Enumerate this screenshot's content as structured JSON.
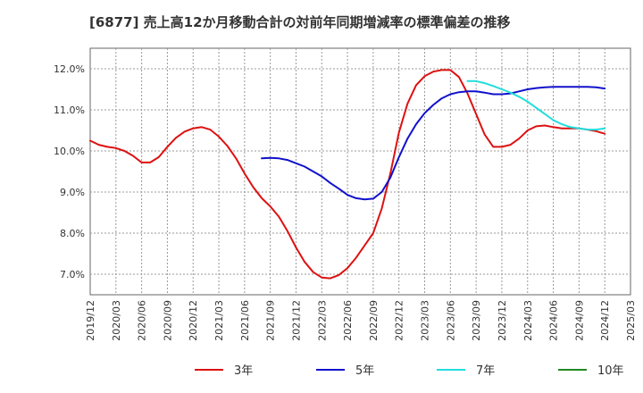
{
  "chart_data": {
    "type": "line",
    "title": "[6877]  売上高12か月移動合計の対前年同期増減率の標準偏差の推移",
    "xlabel": "",
    "ylabel": "",
    "x_ticks": [
      "2019/12",
      "2020/03",
      "2020/06",
      "2020/09",
      "2020/12",
      "2021/03",
      "2021/06",
      "2021/09",
      "2021/12",
      "2022/03",
      "2022/06",
      "2022/09",
      "2022/12",
      "2023/03",
      "2023/06",
      "2023/09",
      "2023/12",
      "2024/03",
      "2024/06",
      "2024/09",
      "2024/12",
      "2025/03"
    ],
    "y_ticks": [
      "7.0%",
      "8.0%",
      "9.0%",
      "10.0%",
      "11.0%",
      "12.0%"
    ],
    "ylim": [
      6.5,
      12.5
    ],
    "grid": true,
    "legend_position": "bottom",
    "series": [
      {
        "name": "3年",
        "color": "#dd1111",
        "points": [
          [
            "2019/12",
            10.25
          ],
          [
            "2020/01",
            10.15
          ],
          [
            "2020/02",
            10.1
          ],
          [
            "2020/03",
            10.07
          ],
          [
            "2020/04",
            10.0
          ],
          [
            "2020/05",
            9.88
          ],
          [
            "2020/06",
            9.72
          ],
          [
            "2020/07",
            9.72
          ],
          [
            "2020/08",
            9.85
          ],
          [
            "2020/09",
            10.1
          ],
          [
            "2020/10",
            10.32
          ],
          [
            "2020/11",
            10.47
          ],
          [
            "2020/12",
            10.55
          ],
          [
            "2020/01b",
            10.58
          ],
          [
            "2021/02",
            10.52
          ],
          [
            "2021/03",
            10.35
          ],
          [
            "2021/04",
            10.12
          ],
          [
            "2021/05",
            9.82
          ],
          [
            "2021/06",
            9.45
          ],
          [
            "2021/07",
            9.12
          ],
          [
            "2021/08",
            8.85
          ],
          [
            "2021/09",
            8.65
          ],
          [
            "2021/10",
            8.4
          ],
          [
            "2021/11",
            8.05
          ],
          [
            "2021/12",
            7.65
          ],
          [
            "2022/01",
            7.3
          ],
          [
            "2022/02",
            7.05
          ],
          [
            "2022/03",
            6.92
          ],
          [
            "2022/04",
            6.9
          ],
          [
            "2022/05",
            6.98
          ],
          [
            "2022/06",
            7.15
          ],
          [
            "2022/07",
            7.4
          ],
          [
            "2022/08",
            7.7
          ],
          [
            "2022/09",
            8.0
          ],
          [
            "2022/10",
            8.6
          ],
          [
            "2022/11",
            9.45
          ],
          [
            "2022/12",
            10.45
          ],
          [
            "2023/01",
            11.15
          ],
          [
            "2023/02",
            11.6
          ],
          [
            "2023/03",
            11.82
          ],
          [
            "2023/04",
            11.93
          ],
          [
            "2023/05",
            11.97
          ],
          [
            "2023/06",
            11.97
          ],
          [
            "2023/07",
            11.8
          ],
          [
            "2023/08",
            11.4
          ],
          [
            "2023/09",
            10.9
          ],
          [
            "2023/10",
            10.4
          ],
          [
            "2023/11",
            10.1
          ],
          [
            "2023/12",
            10.1
          ],
          [
            "2024/01",
            10.15
          ],
          [
            "2024/02",
            10.3
          ],
          [
            "2024/03",
            10.5
          ],
          [
            "2024/04",
            10.6
          ],
          [
            "2024/05",
            10.62
          ],
          [
            "2024/06",
            10.58
          ],
          [
            "2024/07",
            10.55
          ],
          [
            "2024/08",
            10.55
          ],
          [
            "2024/09",
            10.55
          ],
          [
            "2024/10",
            10.52
          ],
          [
            "2024/11",
            10.48
          ],
          [
            "2024/12",
            10.42
          ]
        ]
      },
      {
        "name": "5年",
        "color": "#1111cc",
        "points": [
          [
            "2021/08",
            9.82
          ],
          [
            "2021/09",
            9.83
          ],
          [
            "2021/10",
            9.82
          ],
          [
            "2021/11",
            9.78
          ],
          [
            "2021/12",
            9.7
          ],
          [
            "2022/01",
            9.62
          ],
          [
            "2022/02",
            9.5
          ],
          [
            "2022/03",
            9.38
          ],
          [
            "2022/04",
            9.22
          ],
          [
            "2022/05",
            9.08
          ],
          [
            "2022/06",
            8.93
          ],
          [
            "2022/07",
            8.85
          ],
          [
            "2022/08",
            8.82
          ],
          [
            "2022/09",
            8.84
          ],
          [
            "2022/10",
            9.0
          ],
          [
            "2022/11",
            9.35
          ],
          [
            "2022/12",
            9.85
          ],
          [
            "2023/01",
            10.3
          ],
          [
            "2023/02",
            10.65
          ],
          [
            "2023/03",
            10.92
          ],
          [
            "2023/04",
            11.12
          ],
          [
            "2023/05",
            11.28
          ],
          [
            "2023/06",
            11.38
          ],
          [
            "2023/07",
            11.43
          ],
          [
            "2023/08",
            11.45
          ],
          [
            "2023/09",
            11.45
          ],
          [
            "2023/10",
            11.42
          ],
          [
            "2023/11",
            11.38
          ],
          [
            "2023/12",
            11.38
          ],
          [
            "2024/01",
            11.4
          ],
          [
            "2024/02",
            11.45
          ],
          [
            "2024/03",
            11.5
          ],
          [
            "2024/04",
            11.53
          ],
          [
            "2024/05",
            11.55
          ],
          [
            "2024/06",
            11.56
          ],
          [
            "2024/07",
            11.56
          ],
          [
            "2024/08",
            11.56
          ],
          [
            "2024/09",
            11.56
          ],
          [
            "2024/10",
            11.56
          ],
          [
            "2024/11",
            11.55
          ],
          [
            "2024/12",
            11.52
          ]
        ]
      },
      {
        "name": "7年",
        "color": "#22dddd",
        "points": [
          [
            "2023/08",
            11.7
          ],
          [
            "2023/09",
            11.7
          ],
          [
            "2023/10",
            11.65
          ],
          [
            "2023/11",
            11.58
          ],
          [
            "2023/12",
            11.5
          ],
          [
            "2024/01",
            11.42
          ],
          [
            "2024/02",
            11.32
          ],
          [
            "2024/03",
            11.2
          ],
          [
            "2024/04",
            11.05
          ],
          [
            "2024/05",
            10.9
          ],
          [
            "2024/06",
            10.75
          ],
          [
            "2024/07",
            10.65
          ],
          [
            "2024/08",
            10.58
          ],
          [
            "2024/09",
            10.55
          ],
          [
            "2024/10",
            10.52
          ],
          [
            "2024/11",
            10.52
          ],
          [
            "2024/12",
            10.55
          ]
        ]
      },
      {
        "name": "10年",
        "color": "#228822",
        "points": []
      }
    ]
  }
}
